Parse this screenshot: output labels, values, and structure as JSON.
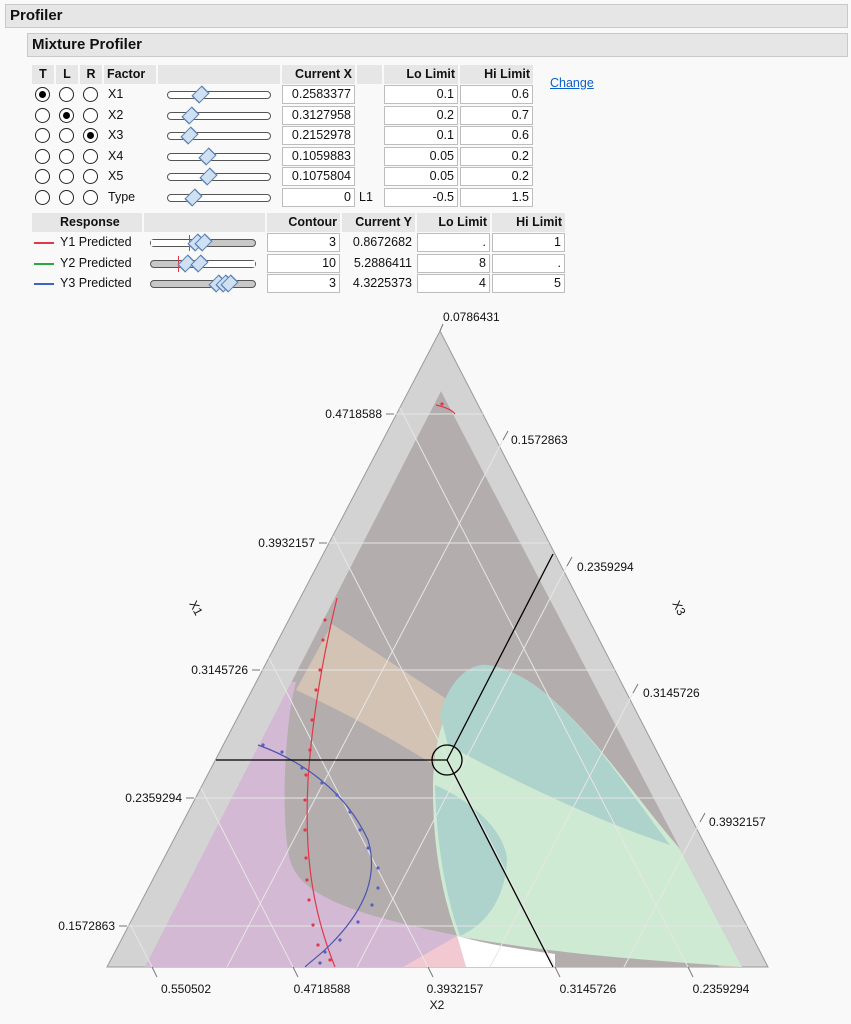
{
  "header": {
    "title": "Profiler",
    "subtitle": "Mixture Profiler"
  },
  "factor_table": {
    "headers": {
      "t": "T",
      "l": "L",
      "r": "R",
      "factor": "Factor",
      "current_x": "Current X",
      "lo": "Lo Limit",
      "hi": "Hi Limit"
    },
    "change_link": "Change",
    "rows": [
      {
        "t": true,
        "l": false,
        "r": false,
        "factor": "X1",
        "current": "0.2583377",
        "unit": "",
        "lo": "0.1",
        "hi": "0.6",
        "slider": 0.32
      },
      {
        "t": false,
        "l": true,
        "r": false,
        "factor": "X2",
        "current": "0.3127958",
        "unit": "",
        "lo": "0.2",
        "hi": "0.7",
        "slider": 0.22
      },
      {
        "t": false,
        "l": false,
        "r": true,
        "factor": "X3",
        "current": "0.2152978",
        "unit": "",
        "lo": "0.1",
        "hi": "0.6",
        "slider": 0.21
      },
      {
        "t": false,
        "l": false,
        "r": false,
        "factor": "X4",
        "current": "0.1059883",
        "unit": "",
        "lo": "0.05",
        "hi": "0.2",
        "slider": 0.38
      },
      {
        "t": false,
        "l": false,
        "r": false,
        "factor": "X5",
        "current": "0.1075804",
        "unit": "",
        "lo": "0.05",
        "hi": "0.2",
        "slider": 0.39
      },
      {
        "t": false,
        "l": false,
        "r": false,
        "factor": "Type",
        "current": "0",
        "unit": "L1",
        "lo": "-0.5",
        "hi": "1.5",
        "slider": 0.25
      }
    ]
  },
  "response_table": {
    "headers": {
      "response": "Response",
      "contour": "Contour",
      "current_y": "Current Y",
      "lo": "Lo Limit",
      "hi": "Hi Limit"
    },
    "rows": [
      {
        "name": "Y1 Predicted",
        "color": "#e0384a",
        "contour": "3",
        "current": "0.8672682",
        "lo": ".",
        "hi": "1"
      },
      {
        "name": "Y2 Predicted",
        "color": "#2fa83a",
        "contour": "10",
        "current": "5.2886411",
        "lo": "8",
        "hi": "."
      },
      {
        "name": "Y3 Predicted",
        "color": "#3e62c9",
        "contour": "3",
        "current": "4.3225373",
        "lo": "4",
        "hi": "5"
      }
    ]
  },
  "ternary": {
    "top_label": "0.0786431",
    "x1_axis": {
      "title": "X1",
      "ticks": [
        "0.4718588",
        "0.3932157",
        "0.3145726",
        "0.2359294",
        "0.1572863"
      ]
    },
    "x2_axis": {
      "title": "X2",
      "ticks": [
        "0.550502",
        "0.4718588",
        "0.3932157",
        "0.3145726",
        "0.2359294"
      ]
    },
    "x3_axis": {
      "title": "X3",
      "ticks": [
        "0.1572863",
        "0.2359294",
        "0.3145726",
        "0.3932157"
      ]
    },
    "colors": {
      "feasible": "#b4adad",
      "y1_band": "#d3c3b4",
      "y3_region": "#d3b9d3",
      "y2_region": "#cfead3",
      "overlap": "#aed2cc",
      "frame": "#d3d3d3"
    }
  }
}
